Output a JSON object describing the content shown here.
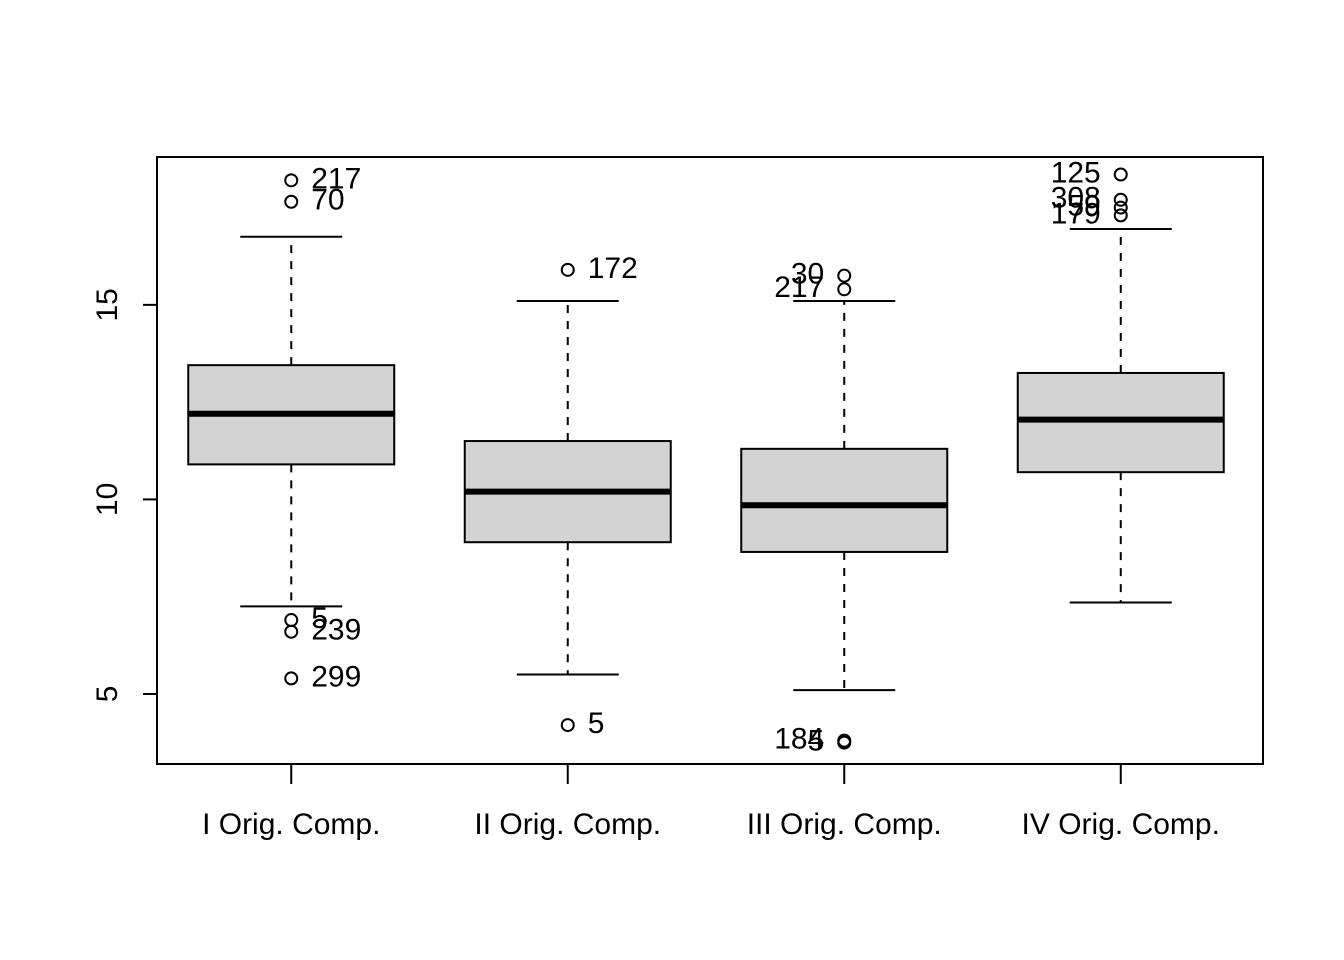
{
  "chart_data": {
    "type": "boxplot",
    "title": "",
    "xlabel": "",
    "ylabel": "",
    "ylim": [
      3.2,
      18.8
    ],
    "yticks": [
      5,
      10,
      15
    ],
    "ytick_labels": [
      "5",
      "10",
      "15"
    ],
    "grid": false,
    "legend": "none",
    "box_fill": "#d3d3d3",
    "line_color": "#000000",
    "categories": [
      "I Orig. Comp.",
      "II Orig. Comp.",
      "III Orig. Comp.",
      "IV Orig. Comp."
    ],
    "boxes": [
      {
        "category": "I Orig. Comp.",
        "whisker_low": 7.25,
        "q1": 10.9,
        "median": 12.2,
        "q3": 13.45,
        "whisker_high": 16.75,
        "outliers": [
          {
            "value": 18.2,
            "label": "217",
            "side": "right"
          },
          {
            "value": 17.65,
            "label": "70",
            "side": "right"
          },
          {
            "value": 6.9,
            "label": "5",
            "side": "right"
          },
          {
            "value": 6.6,
            "label": "239",
            "side": "right"
          },
          {
            "value": 5.4,
            "label": "299",
            "side": "right"
          }
        ]
      },
      {
        "category": "II Orig. Comp.",
        "whisker_low": 5.5,
        "q1": 8.9,
        "median": 10.2,
        "q3": 11.5,
        "whisker_high": 15.1,
        "outliers": [
          {
            "value": 15.9,
            "label": "172",
            "side": "right"
          },
          {
            "value": 4.2,
            "label": "5",
            "side": "right"
          }
        ]
      },
      {
        "category": "III Orig. Comp.",
        "whisker_low": 5.1,
        "q1": 8.65,
        "median": 9.85,
        "q3": 11.3,
        "whisker_high": 15.1,
        "outliers": [
          {
            "value": 15.75,
            "label": "30",
            "side": "left"
          },
          {
            "value": 15.4,
            "label": "217",
            "side": "left"
          },
          {
            "value": 3.8,
            "label": "184",
            "side": "left"
          },
          {
            "value": 3.75,
            "label": "5",
            "side": "left"
          }
        ]
      },
      {
        "category": "IV Orig. Comp.",
        "whisker_low": 7.35,
        "q1": 10.7,
        "median": 12.05,
        "q3": 13.25,
        "whisker_high": 16.95,
        "outliers": [
          {
            "value": 18.35,
            "label": "125",
            "side": "left"
          },
          {
            "value": 17.7,
            "label": "308",
            "side": "left"
          },
          {
            "value": 17.5,
            "label": "59",
            "side": "left"
          },
          {
            "value": 17.3,
            "label": "179",
            "side": "left"
          }
        ]
      }
    ]
  }
}
